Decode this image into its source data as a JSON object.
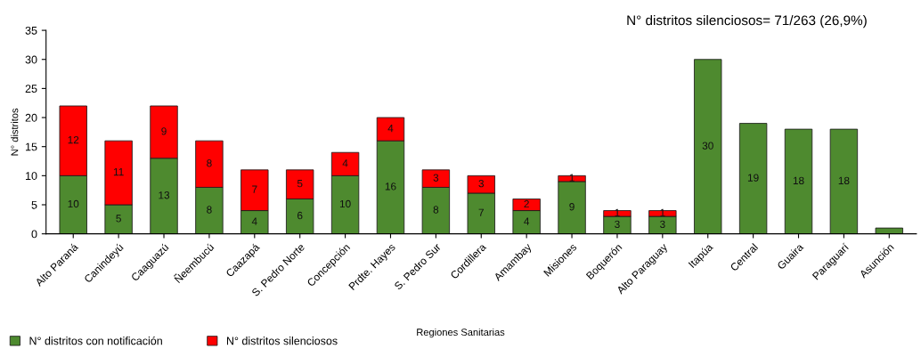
{
  "chart_data": {
    "type": "bar",
    "stacked": true,
    "xlabel": "Regiones Sanitarias",
    "ylabel": "N° distritos",
    "categories": [
      "Alto Paraná",
      "Canindeyú",
      "Caaguazú",
      "Ñeembucú",
      "Caazapá",
      "S. Pedro Norte",
      "Concepción",
      "Prdte. Hayes",
      "S. Pedro Sur",
      "Cordillera",
      "Amambay",
      "Misiones",
      "Boquerón",
      "Alto Paraguay",
      "Itapúa",
      "Central",
      "Guaira",
      "Paraguarí",
      "Asunción"
    ],
    "series": [
      {
        "name": "N° distritos con notificación",
        "color": "#4e8a2f",
        "values": [
          10,
          5,
          13,
          8,
          4,
          6,
          10,
          16,
          8,
          7,
          4,
          9,
          3,
          3,
          30,
          19,
          18,
          18,
          1
        ],
        "value_labels": [
          "10",
          "5",
          "13",
          "8",
          "4",
          "6",
          "10",
          "16",
          "8",
          "7",
          "4",
          "9",
          "3",
          "3",
          "30",
          "19",
          "18",
          "18",
          null
        ]
      },
      {
        "name": "N° distritos silenciosos",
        "color": "#ff0000",
        "values": [
          12,
          11,
          9,
          8,
          7,
          5,
          4,
          4,
          3,
          3,
          2,
          1,
          1,
          1,
          null,
          null,
          null,
          null,
          null
        ],
        "value_labels": [
          "12",
          "11",
          "9",
          "8",
          "7",
          "5",
          "4",
          "4",
          "3",
          "3",
          "2",
          "1",
          "1",
          "1",
          null,
          null,
          null,
          null,
          null
        ]
      }
    ],
    "ylim": [
      0,
      35
    ],
    "yticks": [
      0,
      5,
      10,
      15,
      20,
      25,
      30,
      35
    ],
    "grid": false,
    "legend": "bottom left",
    "annotations": [
      "N° distritos silenciosos= 71/263 (26,9%)"
    ]
  }
}
